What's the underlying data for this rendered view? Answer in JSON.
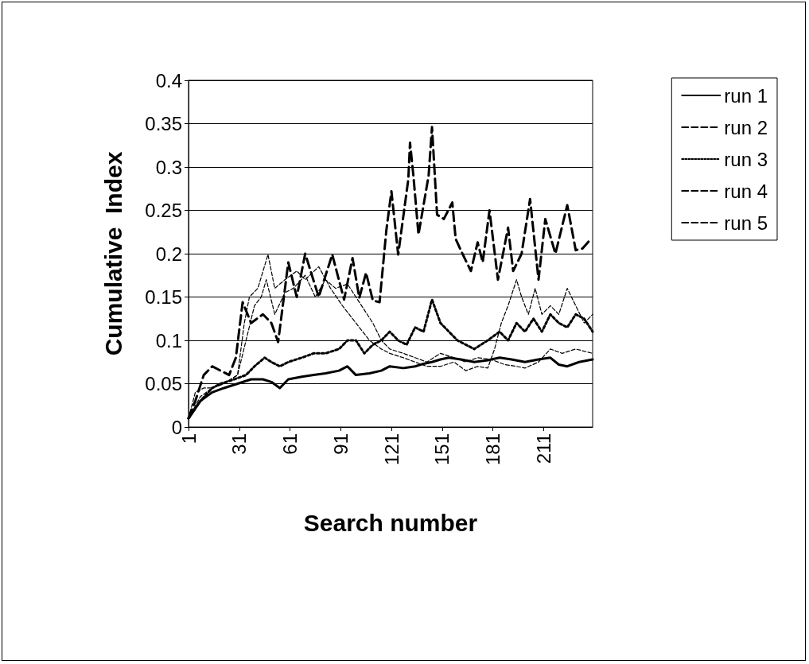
{
  "chart_data": {
    "type": "line",
    "xlabel": "Search number",
    "ylabel": "Cumulative  Index",
    "xlim": [
      1,
      240
    ],
    "xticks": [
      1,
      31,
      61,
      91,
      121,
      151,
      181,
      211
    ],
    "ylim": [
      0,
      0.4
    ],
    "yticks": [
      0,
      0.05,
      0.1,
      0.15,
      0.2,
      0.25,
      0.3,
      0.35,
      0.4
    ],
    "grid": "y",
    "legend": "top right",
    "marker": "none",
    "series": [
      {
        "name": "run 1",
        "color": "#000000",
        "line_style": "solid",
        "x": [
          1,
          8,
          15,
          22,
          30,
          38,
          45,
          50,
          55,
          60,
          68,
          75,
          82,
          90,
          95,
          100,
          108,
          115,
          120,
          128,
          135,
          140,
          145,
          150,
          155,
          162,
          170,
          178,
          185,
          192,
          200,
          208,
          215,
          220,
          225,
          232,
          240
        ],
        "values": [
          0.01,
          0.03,
          0.04,
          0.045,
          0.05,
          0.055,
          0.055,
          0.052,
          0.045,
          0.055,
          0.058,
          0.06,
          0.062,
          0.065,
          0.07,
          0.06,
          0.062,
          0.065,
          0.07,
          0.068,
          0.07,
          0.073,
          0.075,
          0.078,
          0.08,
          0.078,
          0.075,
          0.077,
          0.08,
          0.078,
          0.075,
          0.078,
          0.08,
          0.072,
          0.07,
          0.075,
          0.078
        ]
      },
      {
        "name": "run 2",
        "color": "#000000",
        "line_style": "dashed",
        "x": [
          1,
          8,
          15,
          22,
          30,
          35,
          40,
          44,
          47,
          52,
          58,
          63,
          70,
          76,
          82,
          88,
          95,
          100,
          105,
          110,
          115,
          120,
          128,
          135,
          142,
          150,
          158,
          165,
          172,
          180,
          188,
          195,
          200,
          208,
          215,
          222,
          230,
          240
        ],
        "values": [
          0.01,
          0.035,
          0.045,
          0.05,
          0.06,
          0.1,
          0.14,
          0.15,
          0.17,
          0.13,
          0.155,
          0.16,
          0.175,
          0.15,
          0.17,
          0.16,
          0.165,
          0.15,
          0.135,
          0.12,
          0.1,
          0.09,
          0.085,
          0.08,
          0.075,
          0.085,
          0.08,
          0.075,
          0.08,
          0.078,
          0.072,
          0.07,
          0.068,
          0.075,
          0.09,
          0.085,
          0.09,
          0.085
        ]
      },
      {
        "name": "run 3",
        "color": "#000000",
        "line_style": "dotted",
        "x": [
          1,
          8,
          15,
          20,
          28,
          35,
          40,
          46,
          50,
          55,
          60,
          68,
          75,
          82,
          90,
          95,
          100,
          105,
          110,
          115,
          120,
          125,
          130,
          135,
          140,
          145,
          150,
          155,
          160,
          165,
          170,
          178,
          185,
          190,
          195,
          200,
          205,
          210,
          215,
          220,
          225,
          230,
          235,
          240
        ],
        "values": [
          0.01,
          0.03,
          0.045,
          0.05,
          0.055,
          0.06,
          0.07,
          0.08,
          0.075,
          0.07,
          0.075,
          0.08,
          0.085,
          0.085,
          0.09,
          0.1,
          0.1,
          0.085,
          0.095,
          0.1,
          0.11,
          0.1,
          0.095,
          0.115,
          0.11,
          0.147,
          0.12,
          0.11,
          0.1,
          0.095,
          0.09,
          0.1,
          0.11,
          0.1,
          0.12,
          0.11,
          0.125,
          0.11,
          0.13,
          0.12,
          0.115,
          0.13,
          0.125,
          0.11
        ]
      },
      {
        "name": "run 4",
        "color": "#000000",
        "line_style": "dashed",
        "x": [
          1,
          5,
          10,
          15,
          22,
          30,
          34,
          37,
          42,
          48,
          52,
          58,
          65,
          70,
          78,
          85,
          92,
          100,
          108,
          115,
          120,
          128,
          135,
          142,
          150,
          158,
          165,
          172,
          178,
          182,
          186,
          190,
          195,
          198,
          202,
          206,
          210,
          215,
          220,
          225,
          230,
          235,
          240
        ],
        "values": [
          0.01,
          0.04,
          0.045,
          0.045,
          0.05,
          0.06,
          0.12,
          0.15,
          0.16,
          0.199,
          0.16,
          0.17,
          0.18,
          0.17,
          0.185,
          0.16,
          0.14,
          0.12,
          0.1,
          0.09,
          0.085,
          0.08,
          0.075,
          0.07,
          0.07,
          0.075,
          0.065,
          0.07,
          0.068,
          0.09,
          0.12,
          0.14,
          0.17,
          0.15,
          0.13,
          0.16,
          0.13,
          0.14,
          0.13,
          0.16,
          0.14,
          0.12,
          0.13
        ]
      },
      {
        "name": "run 5",
        "color": "#000000",
        "line_style": "dashed",
        "x": [
          1,
          5,
          10,
          15,
          20,
          25,
          29,
          33,
          38,
          45,
          50,
          54,
          60,
          65,
          70,
          78,
          86,
          93,
          98,
          102,
          106,
          110,
          114,
          118,
          121,
          125,
          131,
          132,
          134,
          137,
          143,
          145,
          148,
          152,
          157,
          159,
          163,
          168,
          172,
          175,
          179,
          184,
          190,
          193,
          198,
          203,
          208,
          212,
          218,
          225,
          230,
          234,
          239
        ],
        "values": [
          0.01,
          0.03,
          0.06,
          0.07,
          0.065,
          0.06,
          0.08,
          0.144,
          0.12,
          0.13,
          0.12,
          0.098,
          0.19,
          0.15,
          0.2,
          0.15,
          0.199,
          0.147,
          0.195,
          0.149,
          0.178,
          0.146,
          0.144,
          0.227,
          0.272,
          0.199,
          0.286,
          0.328,
          0.29,
          0.222,
          0.29,
          0.346,
          0.245,
          0.24,
          0.259,
          0.217,
          0.2,
          0.18,
          0.213,
          0.19,
          0.25,
          0.17,
          0.23,
          0.18,
          0.2,
          0.263,
          0.17,
          0.24,
          0.2,
          0.256,
          0.204,
          0.206,
          0.217
        ]
      }
    ]
  }
}
